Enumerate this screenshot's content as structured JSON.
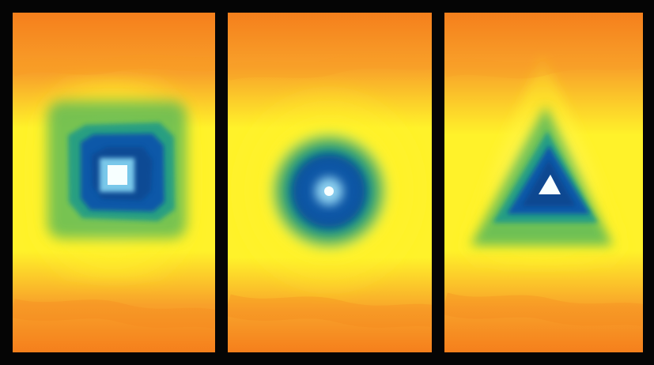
{
  "artwork": {
    "panels": [
      {
        "shape": "square"
      },
      {
        "shape": "circle"
      },
      {
        "shape": "triangle"
      }
    ],
    "palette": {
      "frame": "#050505",
      "outer_orange": "#f57f1c",
      "warm_orange": "#f8a12a",
      "yellow": "#fff22a",
      "pale_yellow": "#fff86e",
      "green": "#4fb25a",
      "teal": "#1b9a8a",
      "blue": "#0b58a8",
      "deep_blue": "#0a3f85",
      "core_white": "#f7ffff"
    }
  }
}
